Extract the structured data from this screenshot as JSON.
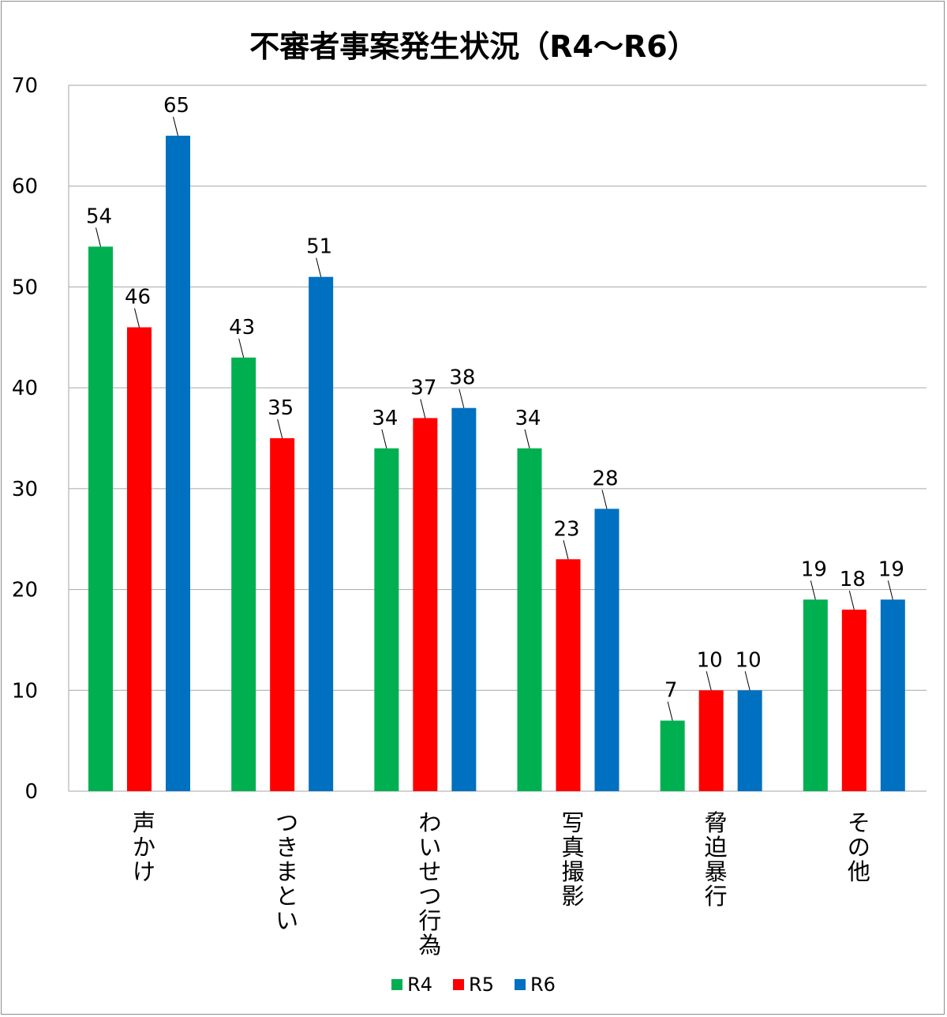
{
  "chart_data": {
    "type": "bar",
    "title": "不審者事案発生状況（R4～R6）",
    "categories": [
      "声かけ",
      "つきまとい",
      "わいせつ行為",
      "写真撮影",
      "脅迫暴行",
      "その他"
    ],
    "series": [
      {
        "name": "R4",
        "color": "#00b050",
        "values": [
          54,
          43,
          34,
          34,
          7,
          19
        ]
      },
      {
        "name": "R5",
        "color": "#ff0000",
        "values": [
          46,
          35,
          37,
          23,
          10,
          18
        ]
      },
      {
        "name": "R6",
        "color": "#0070c0",
        "values": [
          65,
          51,
          38,
          28,
          10,
          19
        ]
      }
    ],
    "ylim": [
      0,
      70
    ],
    "yticks": [
      0,
      10,
      20,
      30,
      40,
      50,
      60,
      70
    ],
    "grid": true,
    "legend": "bottom",
    "xlabel": "",
    "ylabel": ""
  }
}
